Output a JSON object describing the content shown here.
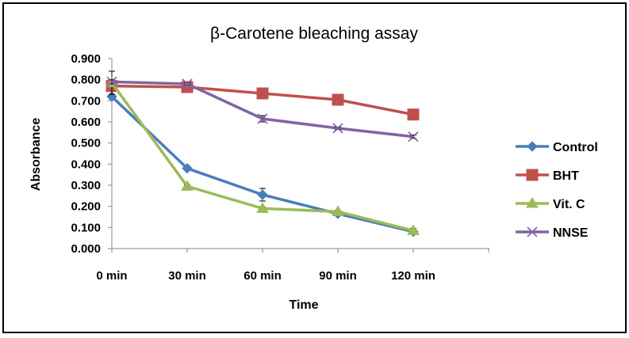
{
  "chart_data": {
    "type": "line",
    "title": "β-Carotene bleaching assay",
    "xlabel": "Time",
    "ylabel": "Absorbance",
    "categories": [
      "0 min",
      "30 min",
      "60 min",
      "90  min",
      "120 min"
    ],
    "ylim": [
      0,
      0.9
    ],
    "yticks": [
      "0.000",
      "0.100",
      "0.200",
      "0.300",
      "0.400",
      "0.500",
      "0.600",
      "0.700",
      "0.800",
      "0.900"
    ],
    "grid": false,
    "legend_position": "right",
    "series": [
      {
        "name": "Control",
        "color": "#4a7ebb",
        "marker": "diamond",
        "values": [
          0.72,
          0.38,
          0.255,
          0.165,
          0.08
        ],
        "errors": [
          0.01,
          0.01,
          0.03,
          0.008,
          0.01
        ]
      },
      {
        "name": "BHT",
        "color": "#c0504d",
        "marker": "square",
        "values": [
          0.77,
          0.765,
          0.735,
          0.705,
          0.635
        ],
        "errors": [
          0.005,
          0.005,
          0.005,
          0.005,
          0.005
        ]
      },
      {
        "name": "Vit. C",
        "color": "#9bbb59",
        "marker": "triangle",
        "values": [
          0.785,
          0.295,
          0.19,
          0.175,
          0.085
        ],
        "errors": [
          0.055,
          0.008,
          0.006,
          0.006,
          0.01
        ]
      },
      {
        "name": "NNSE",
        "color": "#8064a2",
        "marker": "x",
        "values": [
          0.79,
          0.78,
          0.615,
          0.57,
          0.53
        ],
        "errors": [
          0.01,
          0.006,
          0.015,
          0.006,
          0.008
        ]
      }
    ]
  }
}
